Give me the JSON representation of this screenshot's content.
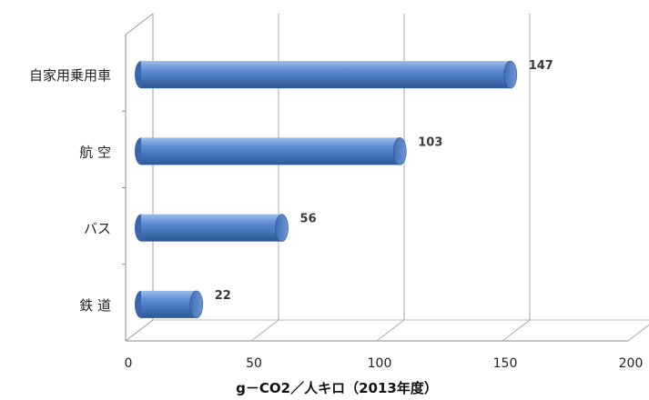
{
  "chart_data": {
    "type": "bar",
    "orientation": "horizontal",
    "style": "3d-cylinder",
    "categories": [
      "自家用乗用車",
      "航 空",
      "バス",
      "鉄 道"
    ],
    "values": [
      147,
      103,
      56,
      22
    ],
    "xlabel": "g－CO2／人キロ（2013年度）",
    "xlim": [
      0,
      200
    ],
    "xticks": [
      0,
      50,
      100,
      150,
      200
    ],
    "grid": true,
    "legend": "none",
    "colors": {
      "bar": "#4a7cc4",
      "bar_dark": "#2d5593",
      "bar_light": "#8fb4e6",
      "axis": "#888888"
    }
  }
}
